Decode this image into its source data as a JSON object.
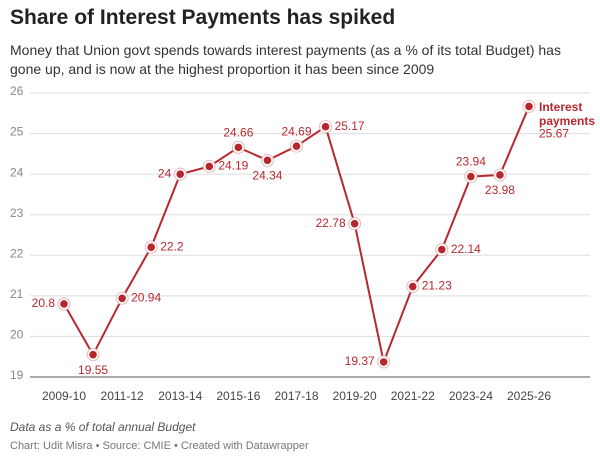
{
  "chart_data": {
    "type": "line",
    "title": "Share of Interest Payments has spiked",
    "subtitle": "Money that Union govt spends towards interest payments (as a % of its total Budget) has gone up, and is now at the highest proportion it has been since 2009",
    "categories": [
      "2009-10",
      null,
      "2011-12",
      null,
      "2013-14",
      null,
      "2015-16",
      null,
      "2017-18",
      null,
      "2019-20",
      null,
      "2021-22",
      null,
      "2023-24",
      null,
      "2025-26"
    ],
    "series": [
      {
        "name": "Interest payments",
        "color": "#b7282e",
        "values": [
          20.8,
          19.55,
          20.94,
          22.2,
          24,
          24.19,
          24.66,
          24.34,
          24.69,
          25.17,
          22.78,
          19.37,
          21.23,
          22.14,
          23.94,
          23.98,
          25.67
        ]
      }
    ],
    "ylim": [
      19,
      26
    ],
    "yticks": [
      19,
      20,
      21,
      22,
      23,
      24,
      25,
      26
    ],
    "grid": true,
    "note": "Data as a % of total annual Budget",
    "source": "Chart: Udit Misra • Source: CMIE • Created with Datawrapper"
  }
}
